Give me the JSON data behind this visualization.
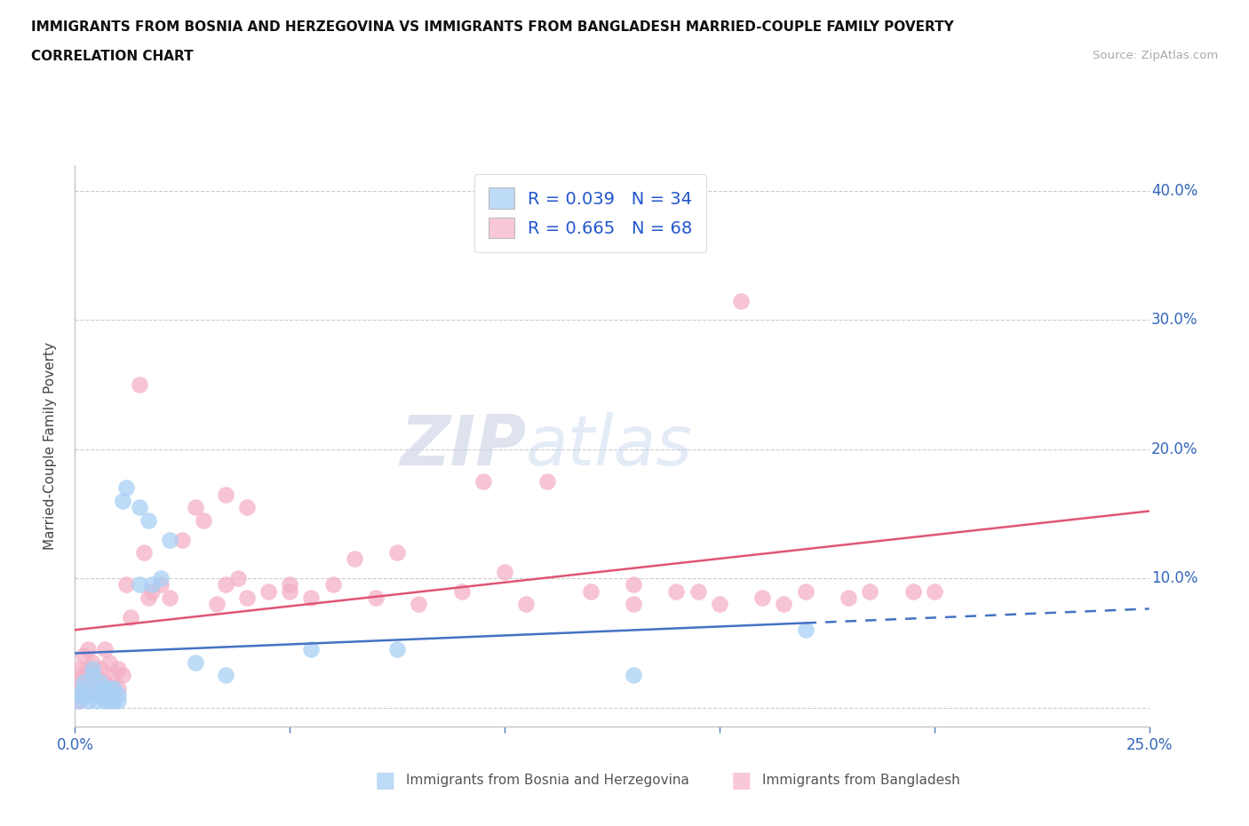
{
  "title_line1": "IMMIGRANTS FROM BOSNIA AND HERZEGOVINA VS IMMIGRANTS FROM BANGLADESH MARRIED-COUPLE FAMILY POVERTY",
  "title_line2": "CORRELATION CHART",
  "source_text": "Source: ZipAtlas.com",
  "ylabel": "Married-Couple Family Poverty",
  "xlim": [
    0.0,
    0.25
  ],
  "ylim": [
    -0.015,
    0.42
  ],
  "color_bosnia": "#a8d0f5",
  "color_bangladesh": "#f5b0c5",
  "line_color_bosnia": "#4472c4",
  "line_color_bangladesh": "#e05575",
  "legend_color_bosnia": "#bddaf7",
  "legend_color_bangladesh": "#f9c8d8",
  "R_bosnia": 0.039,
  "N_bosnia": 34,
  "R_bangladesh": 0.665,
  "N_bangladesh": 68,
  "bosnia_x": [
    0.001,
    0.001,
    0.002,
    0.002,
    0.003,
    0.003,
    0.004,
    0.004,
    0.005,
    0.005,
    0.006,
    0.006,
    0.007,
    0.007,
    0.008,
    0.008,
    0.009,
    0.009,
    0.01,
    0.01,
    0.011,
    0.012,
    0.015,
    0.015,
    0.017,
    0.018,
    0.02,
    0.022,
    0.028,
    0.035,
    0.055,
    0.075,
    0.13,
    0.17
  ],
  "bosnia_y": [
    0.005,
    0.01,
    0.015,
    0.02,
    0.005,
    0.01,
    0.025,
    0.03,
    0.005,
    0.015,
    0.01,
    0.02,
    0.005,
    0.015,
    0.005,
    0.015,
    0.005,
    0.015,
    0.005,
    0.01,
    0.16,
    0.17,
    0.155,
    0.095,
    0.145,
    0.095,
    0.1,
    0.13,
    0.035,
    0.025,
    0.045,
    0.045,
    0.025,
    0.06
  ],
  "bangladesh_x": [
    0.001,
    0.001,
    0.001,
    0.002,
    0.002,
    0.002,
    0.003,
    0.003,
    0.003,
    0.004,
    0.004,
    0.005,
    0.005,
    0.006,
    0.006,
    0.007,
    0.007,
    0.008,
    0.008,
    0.009,
    0.01,
    0.01,
    0.011,
    0.012,
    0.013,
    0.015,
    0.016,
    0.017,
    0.018,
    0.02,
    0.022,
    0.025,
    0.028,
    0.03,
    0.033,
    0.035,
    0.038,
    0.04,
    0.045,
    0.05,
    0.055,
    0.06,
    0.065,
    0.07,
    0.075,
    0.08,
    0.09,
    0.1,
    0.105,
    0.11,
    0.12,
    0.13,
    0.14,
    0.145,
    0.15,
    0.16,
    0.165,
    0.17,
    0.18,
    0.195,
    0.2,
    0.035,
    0.04,
    0.05,
    0.095,
    0.13,
    0.155,
    0.185
  ],
  "bangladesh_y": [
    0.005,
    0.02,
    0.03,
    0.01,
    0.025,
    0.04,
    0.015,
    0.03,
    0.045,
    0.02,
    0.035,
    0.01,
    0.025,
    0.015,
    0.03,
    0.02,
    0.045,
    0.015,
    0.035,
    0.025,
    0.015,
    0.03,
    0.025,
    0.095,
    0.07,
    0.25,
    0.12,
    0.085,
    0.09,
    0.095,
    0.085,
    0.13,
    0.155,
    0.145,
    0.08,
    0.165,
    0.1,
    0.155,
    0.09,
    0.095,
    0.085,
    0.095,
    0.115,
    0.085,
    0.12,
    0.08,
    0.09,
    0.105,
    0.08,
    0.175,
    0.09,
    0.08,
    0.09,
    0.09,
    0.08,
    0.085,
    0.08,
    0.09,
    0.085,
    0.09,
    0.09,
    0.095,
    0.085,
    0.09,
    0.175,
    0.095,
    0.315,
    0.09
  ]
}
